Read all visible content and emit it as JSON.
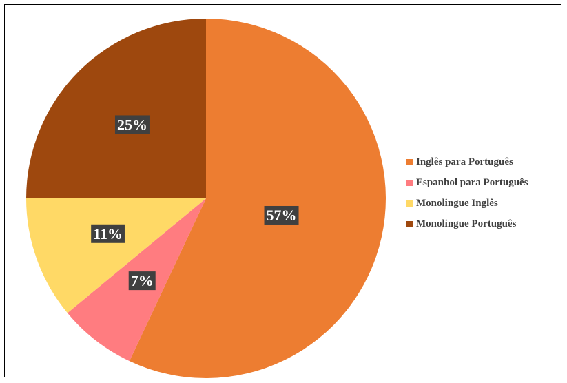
{
  "chart_data": {
    "type": "pie",
    "title": "",
    "categories": [
      "Inglês para Português",
      "Espanhol para Português",
      "Monolingue Inglês",
      "Monolingue Português"
    ],
    "values": [
      57,
      7,
      11,
      25
    ],
    "labels": [
      "57%",
      "7%",
      "11%",
      "25%"
    ],
    "colors": [
      "#ED7D31",
      "#FF7C80",
      "#FFD966",
      "#9E480E"
    ],
    "legend_position": "right",
    "start_angle_deg": 0,
    "direction": "clockwise"
  }
}
